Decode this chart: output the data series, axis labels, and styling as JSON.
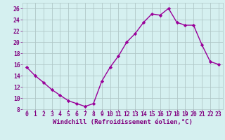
{
  "x": [
    0,
    1,
    2,
    3,
    4,
    5,
    6,
    7,
    8,
    9,
    10,
    11,
    12,
    13,
    14,
    15,
    16,
    17,
    18,
    19,
    20,
    21,
    22,
    23
  ],
  "y": [
    15.5,
    14.0,
    12.8,
    11.5,
    10.5,
    9.5,
    9.0,
    8.5,
    9.0,
    13.0,
    15.5,
    17.5,
    20.0,
    21.5,
    23.5,
    25.0,
    24.8,
    26.0,
    23.5,
    23.0,
    23.0,
    19.5,
    16.5,
    16.0
  ],
  "line_color": "#990099",
  "marker": "D",
  "markersize": 2.2,
  "linewidth": 1.0,
  "xlabel": "Windchill (Refroidissement éolien,°C)",
  "xlim": [
    -0.5,
    23.5
  ],
  "ylim": [
    8,
    27
  ],
  "yticks": [
    8,
    10,
    12,
    14,
    16,
    18,
    20,
    22,
    24,
    26
  ],
  "xticks": [
    0,
    1,
    2,
    3,
    4,
    5,
    6,
    7,
    8,
    9,
    10,
    11,
    12,
    13,
    14,
    15,
    16,
    17,
    18,
    19,
    20,
    21,
    22,
    23
  ],
  "bg_color": "#d5f0f0",
  "grid_color": "#b0c8c8",
  "line_border_color": "#7a007a",
  "tick_color": "#800080",
  "xlabel_fontsize": 6.5,
  "tick_fontsize": 5.8
}
